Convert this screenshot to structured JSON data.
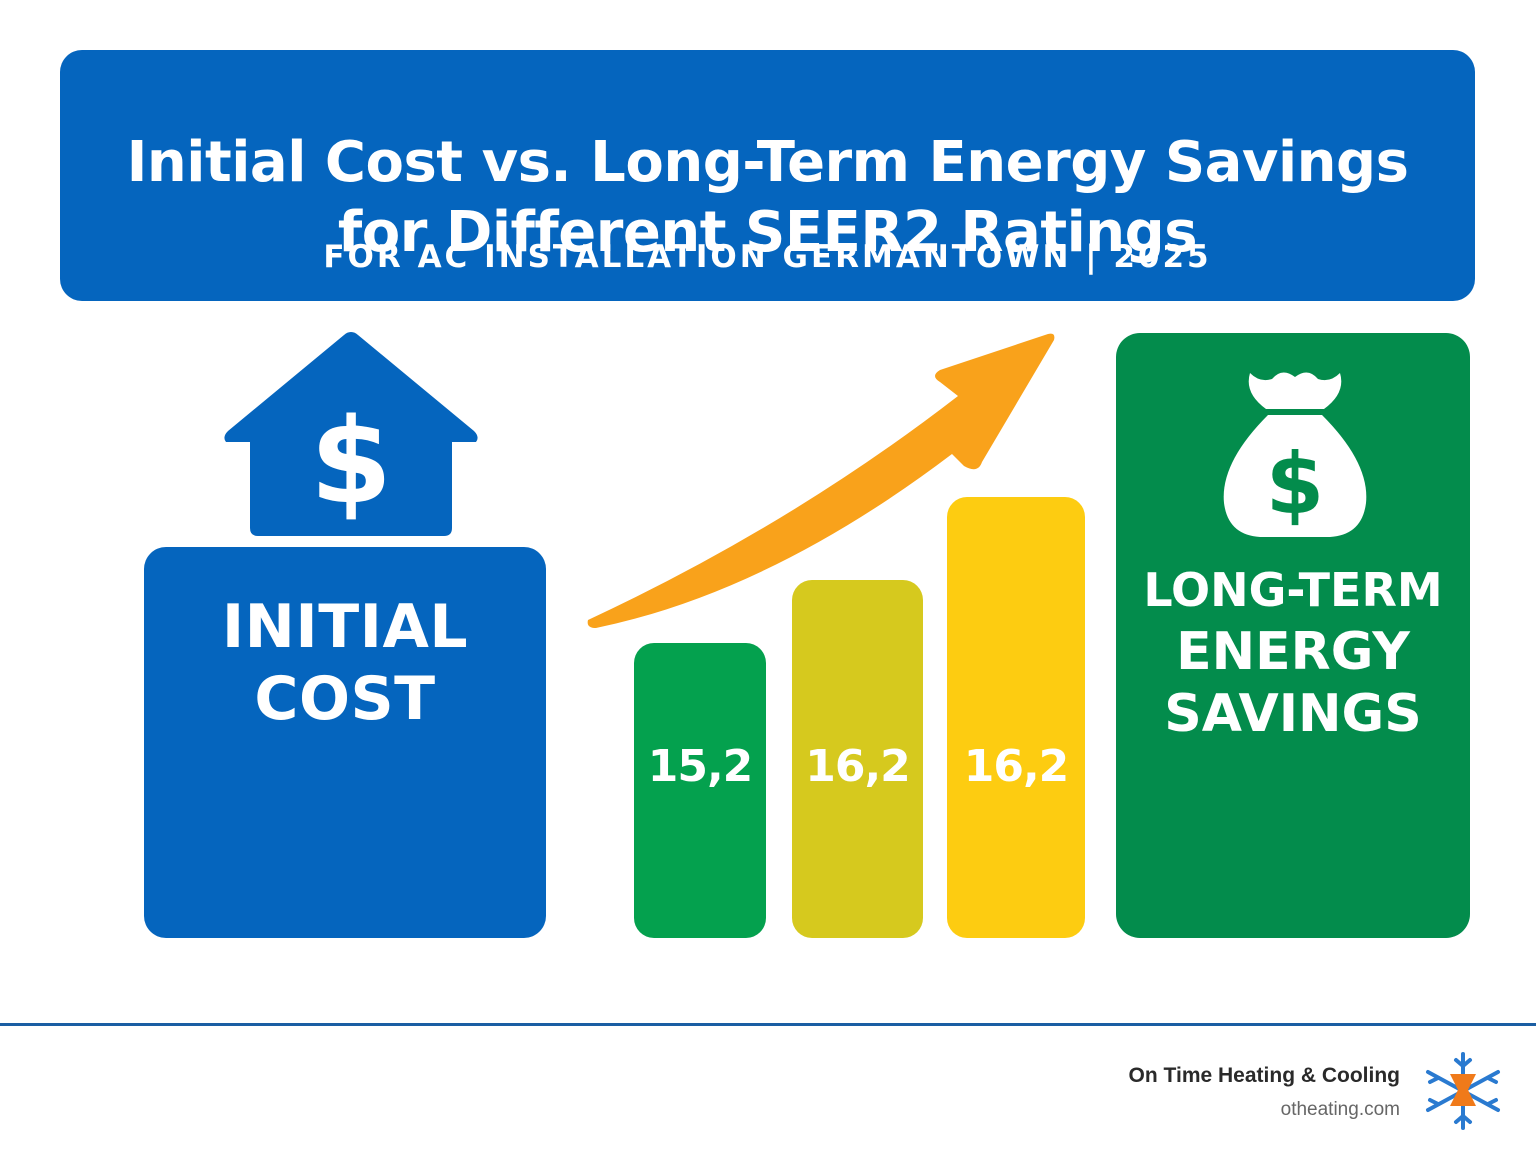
{
  "header": {
    "title_line1": "Initial Cost vs. Long-Term Energy Savings",
    "title_line2": "for Different SEER2 Ratings",
    "subtitle": "FOR AC INSTALLATION GERMANTOWN | 2025"
  },
  "initial_cost": {
    "icon": "house-dollar-icon",
    "label_line1": "INITIAL",
    "label_line2": "COST"
  },
  "seer_bars": [
    {
      "value": "15,2",
      "color": "#04a14e"
    },
    {
      "value": "16,2",
      "color": "#d6c91e"
    },
    {
      "value": "16,2",
      "color": "#fdcc11"
    }
  ],
  "trend_arrow": {
    "icon": "upward-trend-arrow-icon",
    "color": "#f9a21b"
  },
  "long_term_savings": {
    "icon": "money-bag-icon",
    "label_line1": "LONG-TERM",
    "label_line2": "ENERGY",
    "label_line3": "SAVINGS"
  },
  "footer": {
    "brand_name": "On Time Heating & Cooling",
    "brand_url": "otheating.com",
    "logo_icon": "snowflake-flame-logo-icon"
  },
  "colors": {
    "primary_blue": "#0565be",
    "savings_green": "#038c4c",
    "divider": "#1a5ea3"
  }
}
